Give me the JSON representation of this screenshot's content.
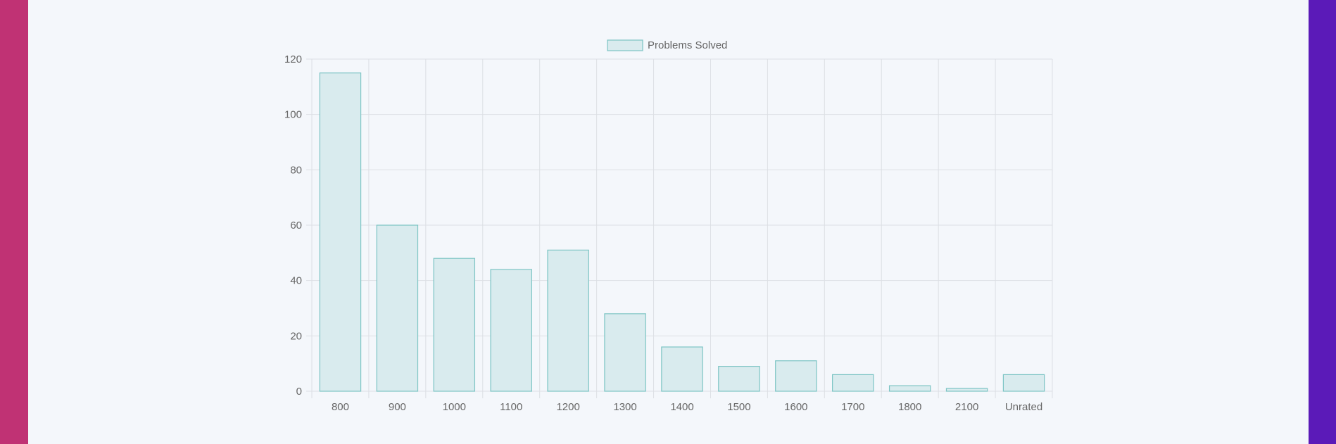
{
  "chart_data": {
    "type": "bar",
    "categories": [
      "800",
      "900",
      "1000",
      "1100",
      "1200",
      "1300",
      "1400",
      "1500",
      "1600",
      "1700",
      "1800",
      "2100",
      "Unrated"
    ],
    "series": [
      {
        "name": "Problems Solved",
        "values": [
          115,
          60,
          48,
          44,
          51,
          28,
          16,
          9,
          11,
          6,
          2,
          1,
          6
        ]
      }
    ],
    "yticks": [
      "0",
      "20",
      "40",
      "60",
      "80",
      "100",
      "120"
    ],
    "ylim": [
      0,
      120
    ],
    "grid": true,
    "legend": "top-center",
    "colors": {
      "bar_fill": "#d9ebee",
      "bar_stroke": "#7cc4c4",
      "grid": "#dcdfe4",
      "tick_text": "#666666",
      "left_stripe": "#c03274",
      "right_stripe": "#5b1ab8",
      "background": "#f4f7fb"
    }
  }
}
